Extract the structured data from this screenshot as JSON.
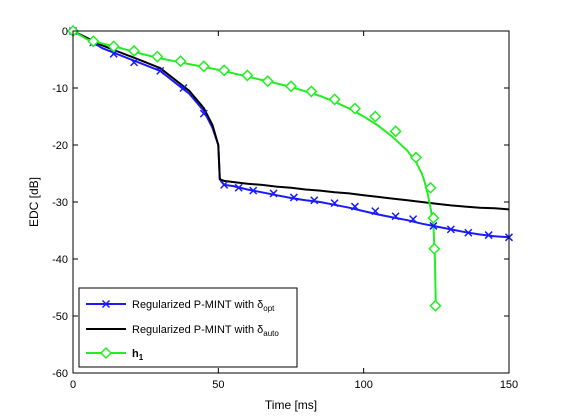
{
  "chart_data": {
    "type": "line",
    "title": "",
    "xlabel": "Time [ms]",
    "ylabel": "EDC [dB]",
    "xlim": [
      0,
      150
    ],
    "ylim": [
      -60,
      0
    ],
    "xticks": [
      0,
      50,
      100,
      150
    ],
    "yticks": [
      0,
      -10,
      -20,
      -30,
      -40,
      -50,
      -60
    ],
    "grid": false,
    "legend_position": "bottom-left",
    "series": [
      {
        "name_main": "Regularized P-MINT with δ",
        "name_sub": "opt",
        "color": "#1a1aff",
        "marker": "x",
        "x": [
          0,
          7,
          10,
          15,
          20,
          25,
          30,
          35,
          40,
          45,
          48,
          50,
          50.5,
          52,
          55,
          60,
          65,
          70,
          75,
          80,
          85,
          90,
          95,
          100,
          105,
          110,
          115,
          120,
          125,
          130,
          135,
          140,
          145,
          150
        ],
        "y": [
          0,
          -2,
          -3,
          -4,
          -5,
          -6,
          -7,
          -9,
          -11,
          -14,
          -17,
          -20,
          -26,
          -27,
          -27.2,
          -27.8,
          -28.3,
          -28.8,
          -29.3,
          -29.7,
          -30,
          -30.5,
          -31,
          -31.6,
          -32.2,
          -32.7,
          -33.2,
          -33.8,
          -34.3,
          -34.8,
          -35.3,
          -35.7,
          -36,
          -36.2
        ],
        "markers_x": [
          0,
          7,
          14,
          21,
          30,
          38,
          45,
          52,
          57,
          62,
          69,
          76,
          83,
          90,
          97,
          104,
          111,
          117,
          124,
          130,
          136,
          143,
          150
        ],
        "markers_y": [
          0,
          -2,
          -4,
          -5.5,
          -7,
          -10,
          -14.5,
          -27,
          -27.5,
          -28,
          -28.5,
          -29.2,
          -29.7,
          -30.2,
          -30.8,
          -31.6,
          -32.5,
          -33,
          -34.2,
          -34.8,
          -35.4,
          -35.8,
          -36.2
        ]
      },
      {
        "name_main": "Regularized P-MINT with δ",
        "name_sub": "auto",
        "color": "#000000",
        "marker": "none",
        "x": [
          0,
          6,
          10,
          15,
          20,
          25,
          30,
          35,
          40,
          45,
          48,
          50,
          50.5,
          52,
          55,
          60,
          65,
          70,
          75,
          80,
          85,
          90,
          95,
          100,
          105,
          110,
          115,
          120,
          125,
          130,
          135,
          140,
          145,
          150
        ],
        "y": [
          0,
          -1.5,
          -2.5,
          -3.5,
          -4.5,
          -5.5,
          -6.5,
          -8.5,
          -10.5,
          -13.5,
          -16.5,
          -20,
          -26,
          -26.3,
          -26.5,
          -26.8,
          -27,
          -27.3,
          -27.5,
          -27.8,
          -28,
          -28.3,
          -28.5,
          -28.8,
          -29.1,
          -29.4,
          -29.7,
          -30,
          -30.3,
          -30.6,
          -30.8,
          -31,
          -31.1,
          -31.3
        ]
      },
      {
        "name_main": "h",
        "name_sub": "1",
        "color": "#22ee22",
        "marker": "diamond",
        "x": [
          0,
          5,
          10,
          15,
          20,
          25,
          30,
          35,
          40,
          45,
          50,
          55,
          60,
          65,
          70,
          75,
          80,
          85,
          90,
          95,
          100,
          105,
          110,
          115,
          118,
          120,
          121,
          122,
          123,
          124,
          124.5,
          124.8
        ],
        "y": [
          0,
          -1.5,
          -2.2,
          -2.8,
          -3.5,
          -4.2,
          -4.8,
          -5.3,
          -5.8,
          -6.3,
          -6.8,
          -7.4,
          -8,
          -8.6,
          -9.2,
          -9.8,
          -10.6,
          -11.4,
          -12.4,
          -13.6,
          -15,
          -16.6,
          -18.6,
          -21,
          -23,
          -25,
          -26.5,
          -28.5,
          -31,
          -34,
          -40,
          -48
        ]
      }
    ]
  },
  "h1_markers": {
    "x": [
      0,
      7,
      14,
      21,
      29,
      37,
      45,
      52,
      60,
      67,
      75,
      82,
      90,
      97,
      104,
      111,
      118,
      123,
      124,
      124.3,
      124.7
    ],
    "y": [
      0,
      -1.8,
      -2.7,
      -3.5,
      -4.5,
      -5.3,
      -6.2,
      -6.9,
      -7.8,
      -8.8,
      -9.7,
      -10.6,
      -12,
      -13.6,
      -15,
      -17.6,
      -22.2,
      -27.5,
      -32.8,
      -38.2,
      -48.2
    ]
  }
}
